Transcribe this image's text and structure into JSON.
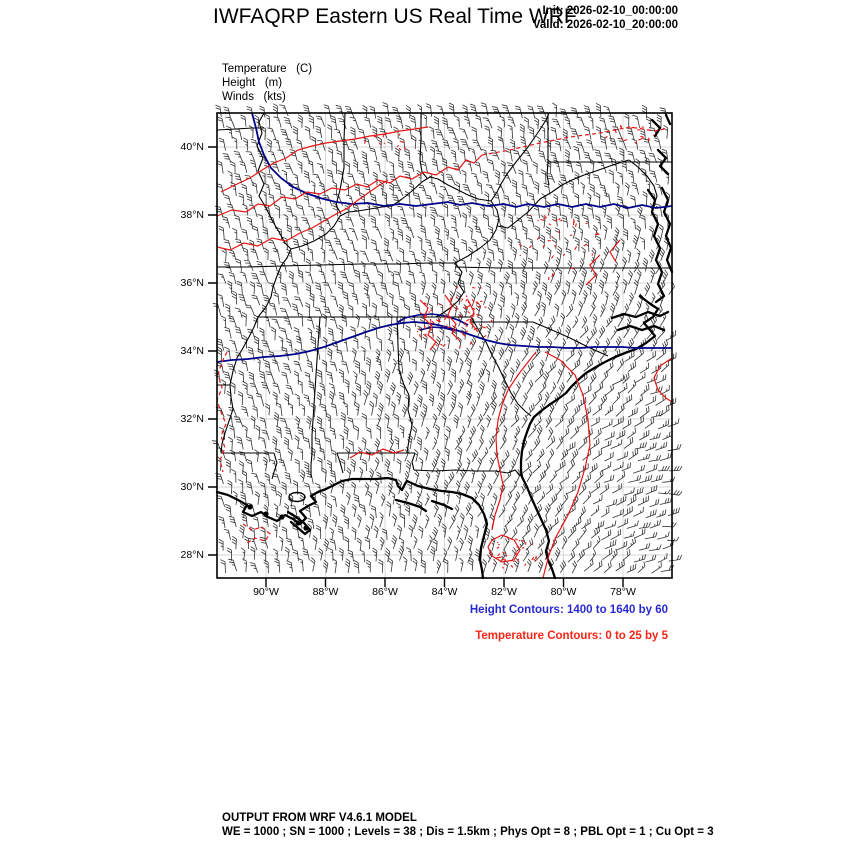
{
  "header": {
    "title": "IWFAQRP Eastern US Real Time WRF",
    "init": "Init: 2026-02-10_00:00:00",
    "valid": "Valid: 2026-02-10_20:00:00"
  },
  "legend": {
    "lines": [
      "Temperature   (C)",
      "Height   (m)",
      "Winds   (kts)"
    ]
  },
  "map": {
    "lat_labels": [
      "40°N",
      "38°N",
      "36°N",
      "34°N",
      "32°N",
      "30°N",
      "28°N"
    ],
    "lon_labels": [
      "90°W",
      "88°W",
      "86°W",
      "84°W",
      "82°W",
      "80°W",
      "78°W"
    ]
  },
  "captions": {
    "height": "Height Contours: 1400 to 1640 by 60",
    "temperature": "Temperature Contours: 0 to 25 by 5"
  },
  "footer": {
    "line1": "OUTPUT FROM WRF V4.6.1 MODEL",
    "line2": "WE = 1000 ; SN = 1000 ; Levels = 38 ; Dis = 1.5km ; Phys Opt = 8 ; PBL Opt = 1 ; Cu Opt = 3"
  },
  "colors": {
    "height_contour": "#00008b",
    "temp_contour": "#e81414",
    "caption_height": "#2a2ad0",
    "caption_temp": "#fb2417",
    "barb": "#333333",
    "border": "#000000",
    "grid": "#c9c9c9"
  },
  "chart_data": {
    "type": "map",
    "description": "WRF model output: wind barbs with temperature and geopotential height contours over the eastern United States",
    "fields": [
      {
        "name": "Temperature",
        "units": "C",
        "style": "contours",
        "min": 0,
        "max": 25,
        "interval": 5,
        "color": "red"
      },
      {
        "name": "Height",
        "units": "m",
        "style": "contours",
        "min": 1400,
        "max": 1640,
        "interval": 60,
        "color": "blue"
      },
      {
        "name": "Winds",
        "units": "kts",
        "style": "wind barbs",
        "color": "black"
      }
    ],
    "lat_ticks": [
      "40°N",
      "38°N",
      "36°N",
      "34°N",
      "32°N",
      "30°N",
      "28°N"
    ],
    "lon_ticks": [
      "90°W",
      "88°W",
      "86°W",
      "84°W",
      "82°W",
      "80°W",
      "78°W"
    ],
    "init_time": "2026-02-10_00:00:00",
    "valid_time": "2026-02-10_20:00:00",
    "model": "WRF V4.6.1"
  }
}
